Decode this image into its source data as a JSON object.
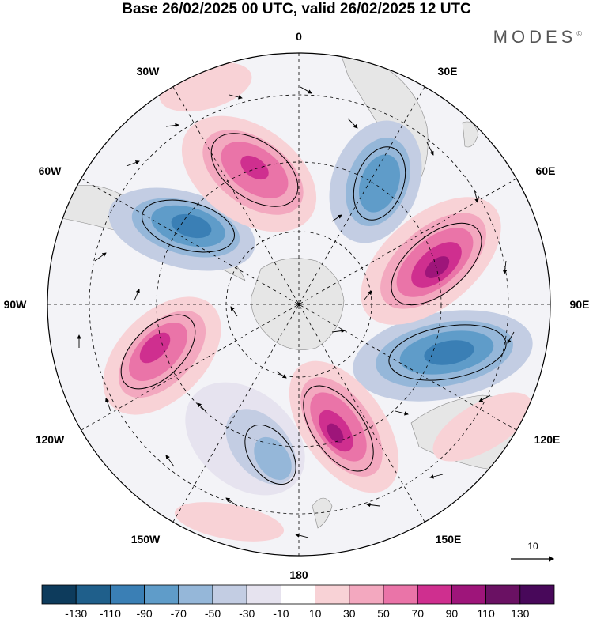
{
  "title": "Base 26/02/2025 00 UTC, valid 26/02/2025 12 UTC",
  "brand": "MODES",
  "brand_mark": "©",
  "longitude_labels": {
    "lon_0": "0",
    "lon_30e": "30E",
    "lon_60e": "60E",
    "lon_90e": "90E",
    "lon_120e": "120E",
    "lon_150e": "150E",
    "lon_180": "180",
    "lon_150w": "150W",
    "lon_120w": "120W",
    "lon_90w": "90W",
    "lon_60w": "60W",
    "lon_30w": "30W"
  },
  "reference_vector_label": "10",
  "colorbar": {
    "tick_labels": [
      "-130",
      "-110",
      "-90",
      "-70",
      "-50",
      "-30",
      "-10",
      "10",
      "30",
      "50",
      "70",
      "90",
      "110",
      "130"
    ],
    "colors": [
      "#0d3b5c",
      "#1f5f8b",
      "#3a7fb5",
      "#5f9cc9",
      "#95b7d9",
      "#c3cde3",
      "#e6e3ef",
      "#ffffff",
      "#f8d2d6",
      "#f3a8bf",
      "#ea74a8",
      "#cf2f8f",
      "#9e157a",
      "#6a1163",
      "#48085a"
    ]
  },
  "anomaly_colors": {
    "negative_strong": "#2f74b0",
    "negative_medium": "#6fa2cf",
    "negative_weak": "#b9c9e2",
    "negative_faint": "#e1e1ee",
    "positive_faint": "#f9dde0",
    "positive_weak": "#f4b3c6",
    "positive_medium": "#e979ae",
    "positive_strong": "#c52a8c",
    "positive_peak": "#8e1478",
    "land": "#e6e6e6"
  }
}
